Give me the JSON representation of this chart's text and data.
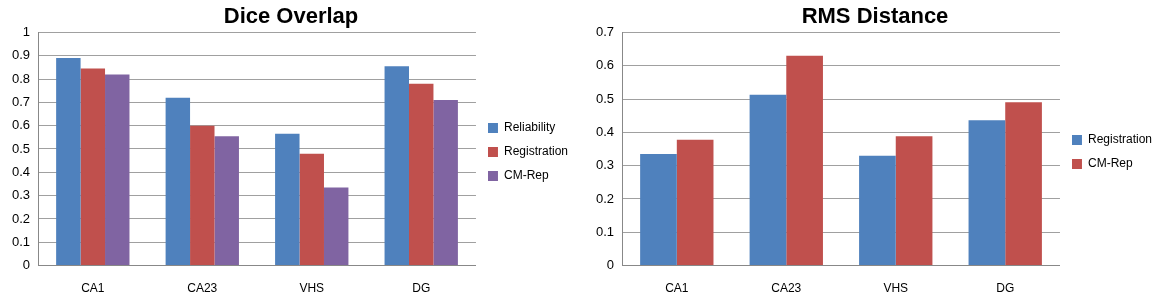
{
  "chart_data": [
    {
      "type": "bar",
      "title": "Dice Overlap",
      "categories": [
        "CA1",
        "CA23",
        "VHS",
        "DG"
      ],
      "series": [
        {
          "name": "Reliability",
          "color": "#4f81bd",
          "values": [
            0.89,
            0.72,
            0.565,
            0.855
          ]
        },
        {
          "name": "Registration",
          "color": "#c0504d",
          "values": [
            0.845,
            0.6,
            0.48,
            0.78
          ]
        },
        {
          "name": "CM-Rep",
          "color": "#8064a2",
          "values": [
            0.82,
            0.555,
            0.335,
            0.71
          ]
        }
      ],
      "ylim": [
        0,
        1
      ],
      "yticks": [
        0,
        0.1,
        0.2,
        0.3,
        0.4,
        0.5,
        0.6,
        0.7,
        0.8,
        0.9,
        1
      ],
      "grid": "y",
      "legend": "right"
    },
    {
      "type": "bar",
      "title": "RMS Distance",
      "categories": [
        "CA1",
        "CA23",
        "VHS",
        "DG"
      ],
      "series": [
        {
          "name": "Registration",
          "color": "#4f81bd",
          "values": [
            0.335,
            0.513,
            0.33,
            0.436
          ]
        },
        {
          "name": "CM-Rep",
          "color": "#c0504d",
          "values": [
            0.378,
            0.63,
            0.388,
            0.49
          ]
        }
      ],
      "ylim": [
        0,
        0.7
      ],
      "yticks": [
        0,
        0.1,
        0.2,
        0.3,
        0.4,
        0.5,
        0.6,
        0.7
      ],
      "grid": "y",
      "legend": "right"
    }
  ]
}
